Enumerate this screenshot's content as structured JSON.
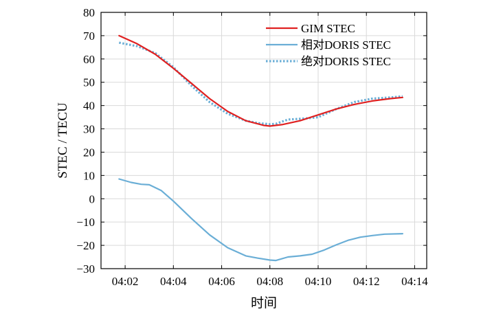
{
  "chart_data": {
    "type": "line",
    "xlabel": "时间",
    "ylabel": "STEC / TECU",
    "xlim": [
      "04:01",
      "04:14:30"
    ],
    "ylim": [
      -30,
      80
    ],
    "x_ticks": [
      "04:02",
      "04:04",
      "04:06",
      "04:08",
      "04:10",
      "04:12",
      "04:14"
    ],
    "y_ticks": [
      -30,
      -20,
      -10,
      0,
      10,
      20,
      30,
      40,
      50,
      60,
      70,
      80
    ],
    "grid": true,
    "legend_position": "top-right",
    "series": [
      {
        "name": "GIM STEC",
        "color": "#e02020",
        "style": "solid",
        "x": [
          "04:01:45",
          "04:02:30",
          "04:03:15",
          "04:04:00",
          "04:04:45",
          "04:05:30",
          "04:06:15",
          "04:07:00",
          "04:07:45",
          "04:08:00",
          "04:08:30",
          "04:09:15",
          "04:10:00",
          "04:10:45",
          "04:11:30",
          "04:12:15",
          "04:13:00",
          "04:13:30"
        ],
        "y": [
          70,
          66.5,
          62,
          56,
          49.5,
          43,
          37.5,
          33.5,
          31.5,
          31.2,
          31.8,
          33.5,
          36,
          38.5,
          40.5,
          42,
          43,
          43.5
        ]
      },
      {
        "name": "相对DORIS STEC",
        "color": "#6aaed6",
        "style": "solid",
        "x": [
          "04:01:45",
          "04:02:15",
          "04:02:40",
          "04:03:00",
          "04:03:30",
          "04:04:00",
          "04:04:45",
          "04:05:30",
          "04:06:15",
          "04:07:00",
          "04:07:30",
          "04:08:00",
          "04:08:15",
          "04:08:45",
          "04:09:15",
          "04:09:45",
          "04:10:15",
          "04:10:45",
          "04:11:15",
          "04:11:45",
          "04:12:15",
          "04:12:45",
          "04:13:30"
        ],
        "y": [
          8.5,
          7,
          6.2,
          6,
          3.5,
          -1,
          -8.5,
          -15.5,
          -21,
          -24.5,
          -25.5,
          -26.3,
          -26.5,
          -25,
          -24.5,
          -23.8,
          -22,
          -19.8,
          -17.8,
          -16.5,
          -15.8,
          -15.2,
          -15
        ]
      },
      {
        "name": "绝对DORIS STEC",
        "color": "#6aaed6",
        "style": "dotted",
        "x": [
          "04:01:45",
          "04:02:30",
          "04:03:15",
          "04:04:00",
          "04:04:45",
          "04:05:30",
          "04:06:15",
          "04:07:00",
          "04:07:30",
          "04:08:00",
          "04:08:15",
          "04:08:45",
          "04:09:30",
          "04:10:00",
          "04:10:45",
          "04:11:30",
          "04:12:15",
          "04:13:00",
          "04:13:30"
        ],
        "y": [
          67,
          65.5,
          62.5,
          56.5,
          48.5,
          41.5,
          36.5,
          33.5,
          32.5,
          32,
          32.2,
          34,
          34.5,
          35,
          38.5,
          41.5,
          43,
          43.5,
          44
        ]
      }
    ]
  }
}
